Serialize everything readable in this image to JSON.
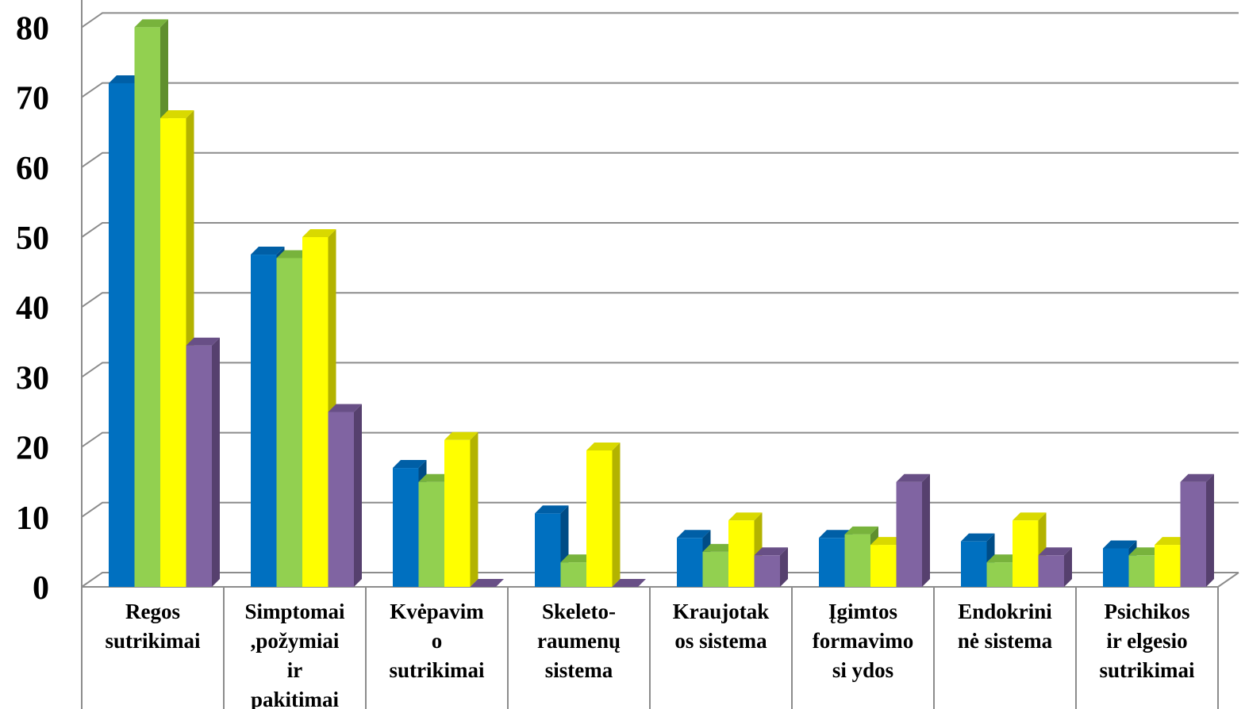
{
  "chart_data": {
    "type": "bar",
    "title": "",
    "xlabel": "",
    "ylabel": "",
    "ylim": [
      0,
      90
    ],
    "yticks": [
      "0",
      "10",
      "20",
      "30",
      "40",
      "50",
      "60",
      "70",
      "80",
      "90"
    ],
    "grid": true,
    "style": "3d-clustered-column",
    "categories": [
      [
        "Regos",
        "sutrikimai"
      ],
      [
        "Simptomai",
        ",požymiai",
        "ir",
        "pakitimai"
      ],
      [
        "Kvėpavim",
        "o",
        "sutrikimai"
      ],
      [
        "Skeleto-",
        "raumenų",
        "sistema"
      ],
      [
        "Kraujotak",
        "os sistema"
      ],
      [
        "Įgimtos",
        "formavimo",
        "si ydos"
      ],
      [
        "Endokrini",
        "nė sistema"
      ],
      [
        "Psichikos",
        "ir elgesio",
        "sutrikimai"
      ]
    ],
    "series": [
      {
        "color": "#0070c0",
        "side": "#004c86",
        "top": "#005fa6",
        "values": [
          72,
          47.5,
          17,
          10.5,
          7,
          7,
          6.5,
          5.5
        ]
      },
      {
        "color": "#92d050",
        "side": "#5f8f2e",
        "top": "#78b33c",
        "values": [
          80,
          47,
          15,
          3.5,
          5,
          7.5,
          3.5,
          4.5
        ]
      },
      {
        "color": "#ffff00",
        "side": "#b3b300",
        "top": "#d9d900",
        "values": [
          67,
          50,
          21,
          19.5,
          9.5,
          6,
          9.5,
          6
        ]
      },
      {
        "color": "#8064a2",
        "side": "#56406e",
        "top": "#684f86",
        "values": [
          34.5,
          25,
          0,
          0,
          4.5,
          15,
          4.5,
          15
        ]
      }
    ]
  }
}
